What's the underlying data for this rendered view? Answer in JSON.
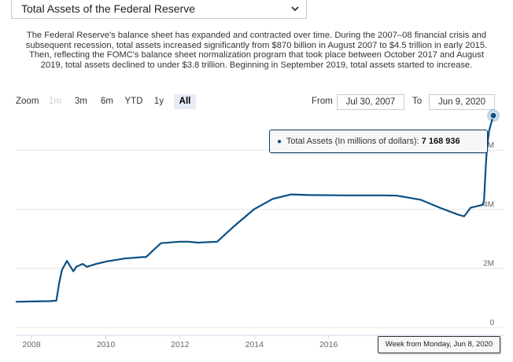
{
  "selector": {
    "label": "Total Assets of the Federal Reserve"
  },
  "description": "The Federal Reserve's balance sheet has expanded and contracted over time. During the 2007–08 financial crisis and subsequent recession, total assets increased significantly from $870 billion in August 2007 to $4.5 trillion in early 2015. Then, reflecting the FOMC's balance sheet normalization program that took place between October 2017 and August 2019, total assets declined to under $3.8 trillion. Beginning in September 2019, total assets started to increase.",
  "zoom": {
    "label": "Zoom",
    "buttons": [
      {
        "label": "1m",
        "state": "disabled"
      },
      {
        "label": "3m",
        "state": "normal"
      },
      {
        "label": "6m",
        "state": "normal"
      },
      {
        "label": "YTD",
        "state": "normal"
      },
      {
        "label": "1y",
        "state": "normal"
      },
      {
        "label": "All",
        "state": "active"
      }
    ]
  },
  "range": {
    "from_label": "From",
    "from_value": "Jul 30, 2007",
    "to_label": "To",
    "to_value": "Jun 9, 2020"
  },
  "tooltip": {
    "series": "Total Assets (In millions of dollars):",
    "value": "7 168 936"
  },
  "x_tooltip": "Week from Monday, Jun 8, 2020",
  "colors": {
    "line": "#0b4f84",
    "grid": "#e6e6e6",
    "axis": "#ccd6eb"
  },
  "chart_data": {
    "type": "line",
    "series": [
      {
        "name": "Total Assets",
        "unit": "millions of dollars",
        "points": [
          [
            "2007-07-30",
            870000
          ],
          [
            "2007-12-31",
            880000
          ],
          [
            "2008-06-30",
            890000
          ],
          [
            "2008-09-01",
            905000
          ],
          [
            "2008-09-29",
            1500000
          ],
          [
            "2008-10-27",
            1950000
          ],
          [
            "2008-12-15",
            2250000
          ],
          [
            "2009-01-19",
            2050000
          ],
          [
            "2009-02-16",
            1900000
          ],
          [
            "2009-03-16",
            2050000
          ],
          [
            "2009-05-18",
            2150000
          ],
          [
            "2009-06-29",
            2050000
          ],
          [
            "2009-09-28",
            2150000
          ],
          [
            "2010-01-04",
            2230000
          ],
          [
            "2010-06-28",
            2330000
          ],
          [
            "2010-12-27",
            2380000
          ],
          [
            "2011-01-31",
            2380000
          ],
          [
            "2011-06-27",
            2850000
          ],
          [
            "2011-12-26",
            2900000
          ],
          [
            "2012-03-26",
            2900000
          ],
          [
            "2012-06-25",
            2870000
          ],
          [
            "2012-12-31",
            2900000
          ],
          [
            "2013-06-24",
            3450000
          ],
          [
            "2013-12-30",
            4000000
          ],
          [
            "2014-06-30",
            4350000
          ],
          [
            "2014-12-29",
            4500000
          ],
          [
            "2015-06-29",
            4480000
          ],
          [
            "2016-06-27",
            4470000
          ],
          [
            "2017-06-26",
            4470000
          ],
          [
            "2017-10-30",
            4460000
          ],
          [
            "2018-06-25",
            4320000
          ],
          [
            "2018-12-31",
            4050000
          ],
          [
            "2019-06-24",
            3820000
          ],
          [
            "2019-08-26",
            3760000
          ],
          [
            "2019-10-28",
            4050000
          ],
          [
            "2020-02-24",
            4150000
          ],
          [
            "2020-03-09",
            4300000
          ],
          [
            "2020-03-23",
            5250000
          ],
          [
            "2020-04-06",
            6100000
          ],
          [
            "2020-04-27",
            6650000
          ],
          [
            "2020-05-25",
            7000000
          ],
          [
            "2020-06-08",
            7168936
          ]
        ]
      }
    ],
    "x_ticks": [
      "2008",
      "2010",
      "2012",
      "2014",
      "2016"
    ],
    "y_ticks": [
      "0",
      "2M",
      "4M",
      "6M"
    ],
    "ylim": [
      0,
      7200000
    ],
    "xlim": [
      "2007-07-30",
      "2020-06-08"
    ],
    "grid": true,
    "legend": "none"
  }
}
